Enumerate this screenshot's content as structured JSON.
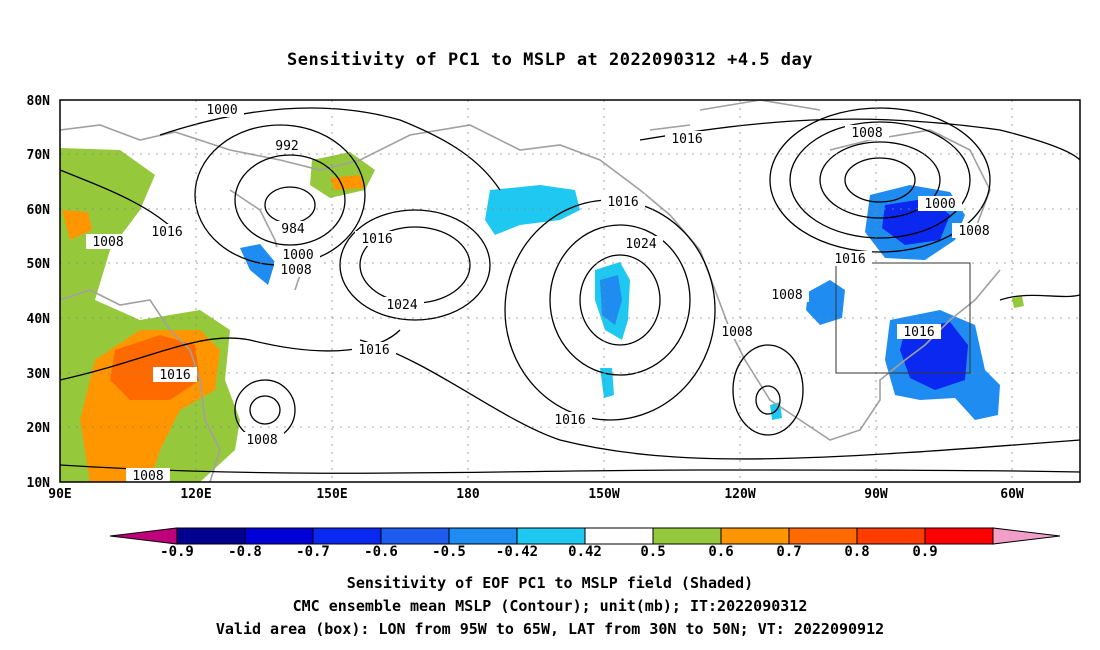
{
  "title": "Sensitivity of PC1 to MSLP at 2022090312 +4.5 day",
  "lat_labels": [
    "80N",
    "70N",
    "60N",
    "50N",
    "40N",
    "30N",
    "20N",
    "10N"
  ],
  "lon_labels": [
    "90E",
    "120E",
    "150E",
    "180",
    "150W",
    "120W",
    "90W",
    "60W"
  ],
  "contour_labels": [
    "1000",
    "992",
    "984",
    "1000",
    "1008",
    "1008",
    "1016",
    "1016",
    "1024",
    "1016",
    "1016",
    "1024",
    "1016",
    "1008",
    "1016",
    "1000",
    "1008",
    "1016",
    "1008",
    "1008",
    "1016",
    "1016",
    "1008",
    "1008"
  ],
  "valid_box": {
    "lon_west": "95W",
    "lon_east": "65W",
    "lat_south": "30N",
    "lat_north": "50N"
  },
  "colorbar": {
    "colors": [
      "#c0007a",
      "#000090",
      "#0000d8",
      "#0a28f0",
      "#1e5cf0",
      "#1e8cf0",
      "#1ec8f0",
      "#ffffff",
      "#96c83c",
      "#ff9600",
      "#ff6a00",
      "#ff3c00",
      "#ff0000",
      "#f0a0c8"
    ],
    "tick_labels": [
      "-0.9",
      "-0.8",
      "-0.7",
      "-0.6",
      "-0.5",
      "-0.42",
      "0.42",
      "0.5",
      "0.6",
      "0.7",
      "0.8",
      "0.9"
    ]
  },
  "footer": {
    "line1": "Sensitivity of EOF PC1 to MSLP field (Shaded)",
    "line2": "CMC ensemble mean MSLP (Contour); unit(mb); IT:2022090312",
    "line3": "Valid area (box): LON from 95W to 65W, LAT from 30N to 50N; VT: 2022090912"
  }
}
